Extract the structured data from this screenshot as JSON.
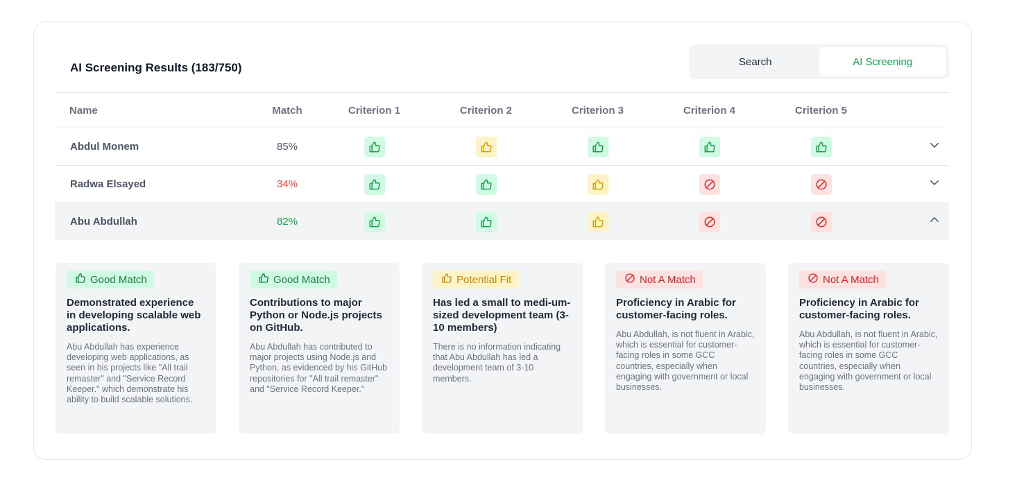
{
  "header": {
    "title": "AI Screening Results (183/750)",
    "tabs": [
      "Search",
      "AI Screening"
    ]
  },
  "table": {
    "columns": [
      "Name",
      "Match",
      "Criterion 1",
      "Criterion 2",
      "Criterion 3",
      "Criterion 4",
      "Criterion 5"
    ],
    "rows": [
      {
        "name": "Abdul Monem",
        "match": "85%",
        "criteria": [
          "good",
          "potential",
          "good",
          "good",
          "good"
        ],
        "expanded": false
      },
      {
        "name": "Radwa Elsayed",
        "match": "34%",
        "criteria": [
          "good",
          "good",
          "potential",
          "no",
          "no"
        ],
        "expanded": false
      },
      {
        "name": "Abu Abdullah",
        "match": "82%",
        "criteria": [
          "good",
          "good",
          "potential",
          "no",
          "no"
        ],
        "expanded": true
      }
    ]
  },
  "details": [
    {
      "tag": "Good Match",
      "title": "Demonstrated experience in developing scalable web applications.",
      "body": "Abu Abdullah has experience developing web applications, as seen in his projects like \"All trail remaster\" and \"Service Record Keeper.\" which demonstrate his ability to build scalable solutions."
    },
    {
      "tag": "Good Match",
      "title": "Contributions to major Python or Node.js projects on GitHub.",
      "body": "Abu Abdullah has contributed to major projects using Node.js and Python, as evidenced by his GitHub repositories for \"All trail remaster\" and \"Service Record Keeper.\""
    },
    {
      "tag": "Potential Fit",
      "title": "Has led a small to medi-um-sized development team (3-10 members)",
      "body": "There is no information indicating that Abu Abdullah has led a development team of 3-10 members."
    },
    {
      "tag": "Not A Match",
      "title": "Proficiency in Arabic for customer-facing roles.",
      "body": "Abu Abdullah, is not fluent in Arabic, which is essential for customer-facing roles in some GCC countries, especially when engaging with government or local businesses."
    },
    {
      "tag": "Not A Match",
      "title": "Proficiency in Arabic for customer-facing roles.",
      "body": "Abu Abdullah, is not fluent in Arabic, which is essential for customer-facing roles in some GCC countries, especially when engaging with government or local businesses."
    }
  ],
  "colors": {
    "good": "#16a34a",
    "potential": "#d4a100",
    "no": "#dc2626",
    "low_match": "#ef4444"
  }
}
